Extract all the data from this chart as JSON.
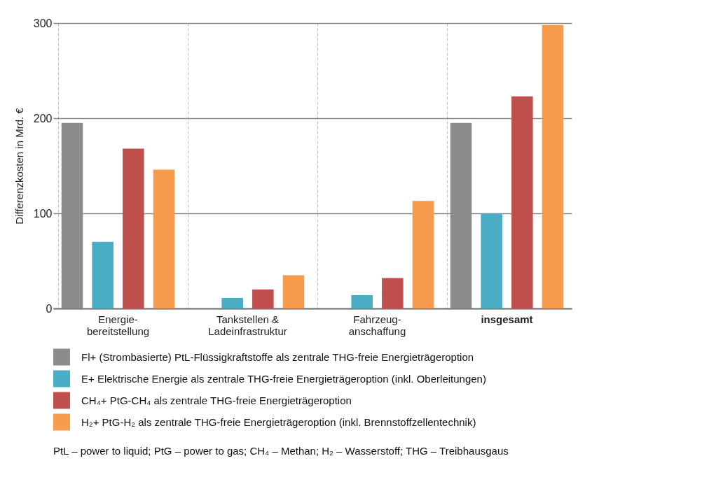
{
  "chart_data": {
    "type": "bar",
    "ylabel": "Differenzkosten in Mrd. €",
    "categories": [
      "Energie-\nbereitstellung",
      "Tankstellen &\nLadeinfrastruktur",
      "Fahrzeug-\nanschaffung",
      "insgesamt"
    ],
    "series": [
      {
        "name": "Fl+  (Strombasierte) PtL-Flüssigkraftstoffe als zentrale THG-freie Energieträgeroption",
        "color": "#8c8c8c",
        "values": [
          195,
          0,
          0,
          195
        ]
      },
      {
        "name": "E+  Elektrische Energie als zentrale THG-freie Energieträgeroption (inkl. Oberleitungen)",
        "color": "#4bacc6",
        "values": [
          70,
          11,
          14,
          100
        ]
      },
      {
        "name": "CH₄+  PtG-CH₄ als zentrale THG-freie Energieträgeroption",
        "color": "#c0504d",
        "values": [
          168,
          20,
          32,
          223
        ]
      },
      {
        "name": "H₂+  PtG-H₂ als zentrale THG-freie Energieträgeroption (inkl. Brennstoffzellentechnik)",
        "color": "#f79b4f",
        "values": [
          146,
          35,
          113,
          298
        ]
      }
    ],
    "ylim": [
      0,
      300
    ],
    "yticks": [
      0,
      100,
      200,
      300
    ],
    "grid": true,
    "legend": "bottom",
    "annotations": [
      "PtL – power to liquid; PtG – power to gas; CH₄ – Methan; H₂ – Wasserstoff; THG – Treibhausgaus"
    ]
  }
}
